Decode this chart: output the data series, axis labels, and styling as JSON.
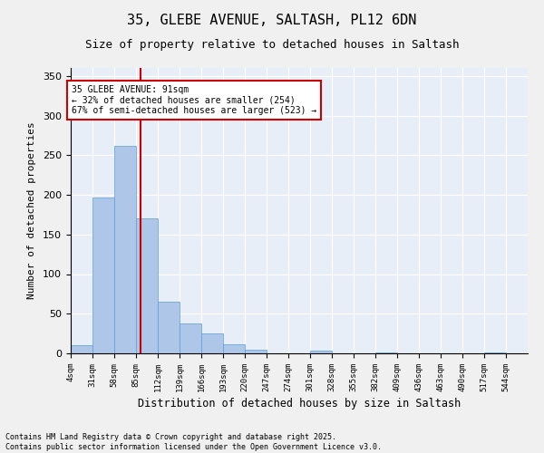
{
  "title_line1": "35, GLEBE AVENUE, SALTASH, PL12 6DN",
  "title_line2": "Size of property relative to detached houses in Saltash",
  "xlabel": "Distribution of detached houses by size in Saltash",
  "ylabel": "Number of detached properties",
  "bin_labels": [
    "4sqm",
    "31sqm",
    "58sqm",
    "85sqm",
    "112sqm",
    "139sqm",
    "166sqm",
    "193sqm",
    "220sqm",
    "247sqm",
    "274sqm",
    "301sqm",
    "328sqm",
    "355sqm",
    "382sqm",
    "409sqm",
    "436sqm",
    "463sqm",
    "490sqm",
    "517sqm",
    "544sqm"
  ],
  "bin_edges": [
    4,
    31,
    58,
    85,
    112,
    139,
    166,
    193,
    220,
    247,
    274,
    301,
    328,
    355,
    382,
    409,
    436,
    463,
    490,
    517,
    544
  ],
  "bar_heights": [
    10,
    197,
    262,
    170,
    65,
    38,
    25,
    12,
    5,
    0,
    0,
    3,
    0,
    0,
    1,
    0,
    0,
    0,
    0,
    1
  ],
  "bar_color": "#aec6e8",
  "bar_edge_color": "#5a9fd4",
  "property_size": 91,
  "property_label": "35 GLEBE AVENUE: 91sqm",
  "annotation_line1": "← 32% of detached houses are smaller (254)",
  "annotation_line2": "67% of semi-detached houses are larger (523) →",
  "vline_color": "#cc0000",
  "annotation_box_color": "#cc0000",
  "ylim": [
    0,
    360
  ],
  "yticks": [
    0,
    50,
    100,
    150,
    200,
    250,
    300,
    350
  ],
  "background_color": "#e8eef7",
  "grid_color": "#ffffff",
  "footer_line1": "Contains HM Land Registry data © Crown copyright and database right 2025.",
  "footer_line2": "Contains public sector information licensed under the Open Government Licence v3.0."
}
